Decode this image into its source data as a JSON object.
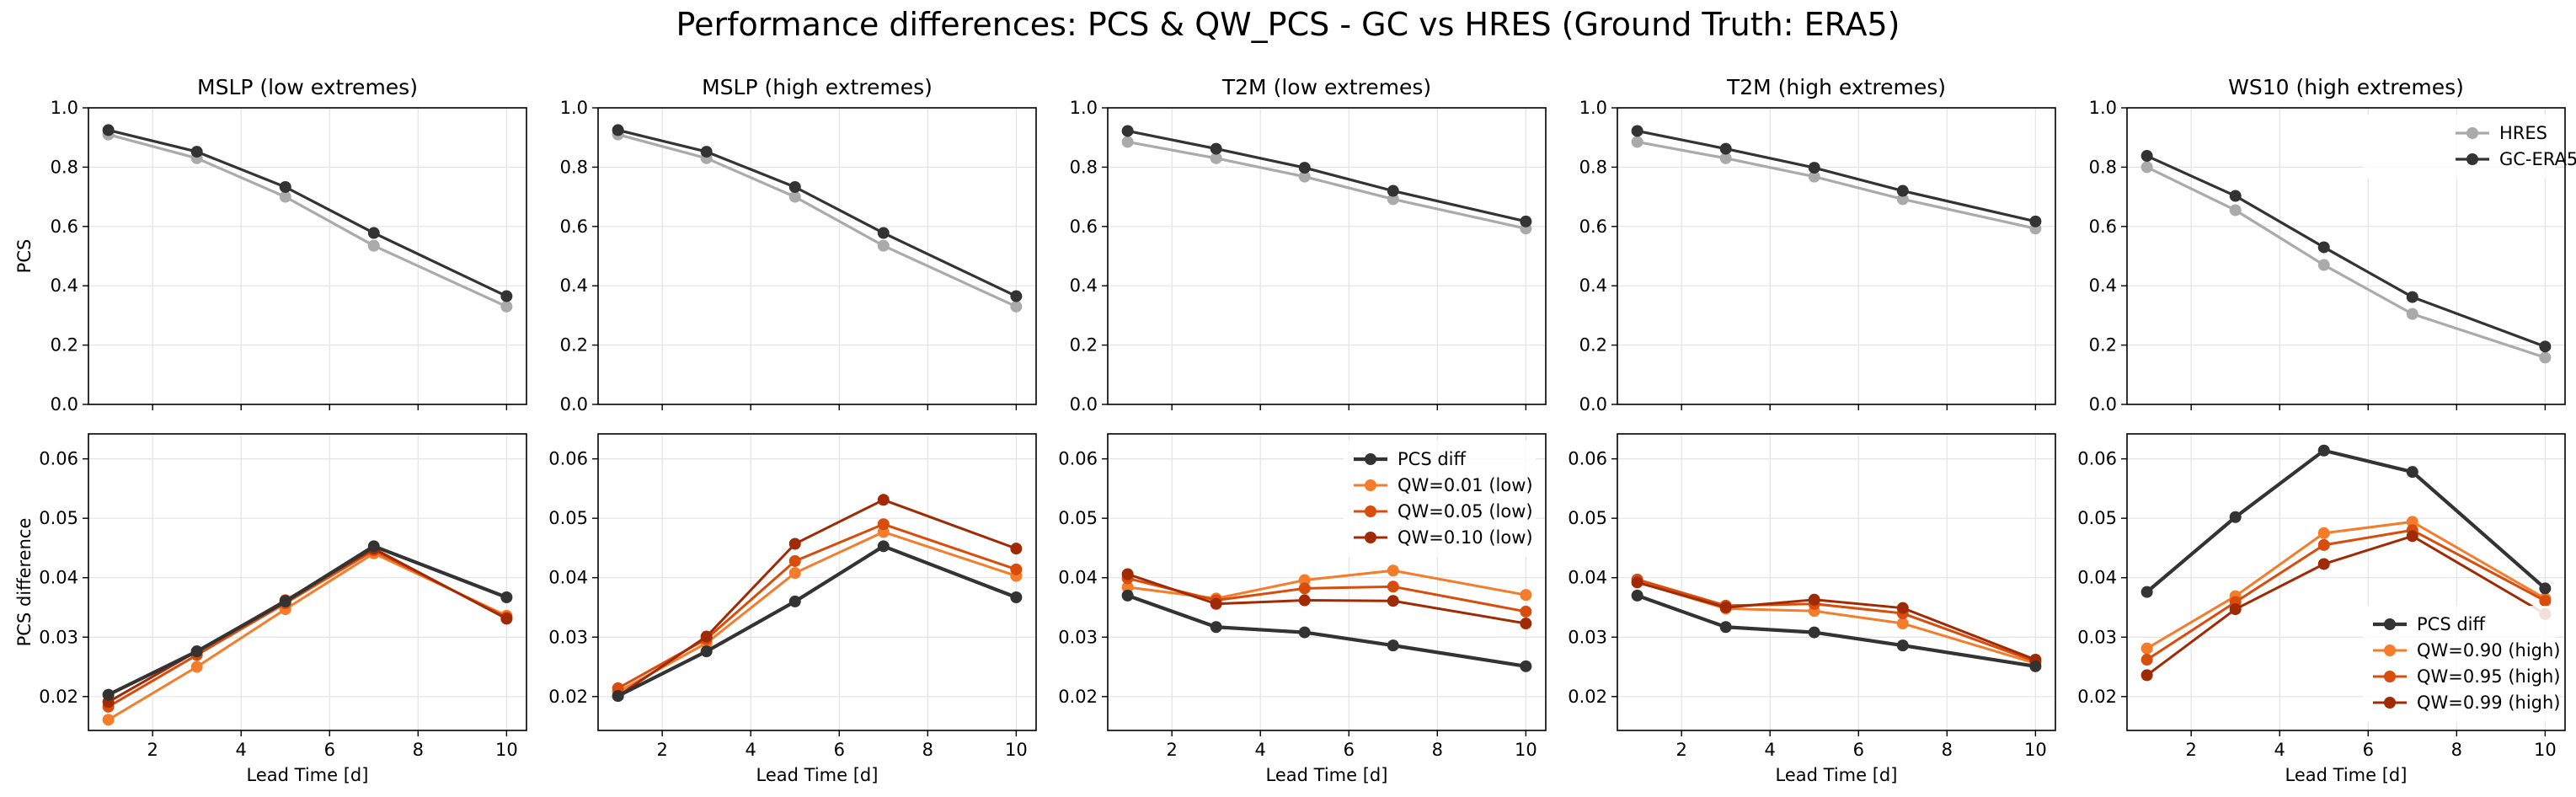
{
  "suptitle": "Performance differences: PCS & QW_PCS - GC vs HRES (Ground Truth: ERA5)",
  "colors": {
    "HRES": "#aaaaaa",
    "GC-ERA5": "#333333",
    "PCS diff": "#333333",
    "qw_low": [
      "#f47c2a",
      "#d84c0c",
      "#a02a04"
    ],
    "qw_high": [
      "#f47c2a",
      "#d84c0c",
      "#a02a04"
    ],
    "grid": "#e3e3e3"
  },
  "chart_data": [
    {
      "type": "line",
      "title": "MSLP (low extremes)",
      "ylabel": "PCS",
      "xlabel": "",
      "x": [
        1,
        3,
        5,
        7,
        10
      ],
      "xlim": [
        0.55,
        10.45
      ],
      "ylim": [
        0,
        1.0
      ],
      "xticks": [
        2,
        4,
        6,
        8,
        10
      ],
      "yticks": [
        0.0,
        0.2,
        0.4,
        0.6,
        0.8,
        1.0
      ],
      "ytick_labels": [
        "0.0",
        "0.2",
        "0.4",
        "0.6",
        "0.8",
        "1.0"
      ],
      "show_xtick_labels": false,
      "grid": true,
      "series": [
        {
          "name": "HRES",
          "values": [
            0.91,
            0.83,
            0.7,
            0.535,
            0.33
          ]
        },
        {
          "name": "GC-ERA5",
          "values": [
            0.925,
            0.852,
            0.733,
            0.578,
            0.365
          ]
        }
      ]
    },
    {
      "type": "line",
      "title": "MSLP (high extremes)",
      "ylabel": "",
      "xlabel": "",
      "x": [
        1,
        3,
        5,
        7,
        10
      ],
      "xlim": [
        0.55,
        10.45
      ],
      "ylim": [
        0,
        1.0
      ],
      "xticks": [
        2,
        4,
        6,
        8,
        10
      ],
      "yticks": [
        0.0,
        0.2,
        0.4,
        0.6,
        0.8,
        1.0
      ],
      "ytick_labels": [
        "0.0",
        "0.2",
        "0.4",
        "0.6",
        "0.8",
        "1.0"
      ],
      "show_xtick_labels": false,
      "grid": true,
      "series": [
        {
          "name": "HRES",
          "values": [
            0.91,
            0.83,
            0.7,
            0.535,
            0.33
          ]
        },
        {
          "name": "GC-ERA5",
          "values": [
            0.925,
            0.852,
            0.733,
            0.578,
            0.365
          ]
        }
      ]
    },
    {
      "type": "line",
      "title": "T2M (low extremes)",
      "ylabel": "",
      "xlabel": "",
      "x": [
        1,
        3,
        5,
        7,
        10
      ],
      "xlim": [
        0.55,
        10.45
      ],
      "ylim": [
        0,
        1.0
      ],
      "xticks": [
        2,
        4,
        6,
        8,
        10
      ],
      "yticks": [
        0.0,
        0.2,
        0.4,
        0.6,
        0.8,
        1.0
      ],
      "ytick_labels": [
        "0.0",
        "0.2",
        "0.4",
        "0.6",
        "0.8",
        "1.0"
      ],
      "show_xtick_labels": false,
      "grid": true,
      "series": [
        {
          "name": "HRES",
          "values": [
            0.885,
            0.83,
            0.768,
            0.692,
            0.593
          ]
        },
        {
          "name": "GC-ERA5",
          "values": [
            0.922,
            0.862,
            0.798,
            0.72,
            0.617
          ]
        }
      ]
    },
    {
      "type": "line",
      "title": "T2M (high extremes)",
      "ylabel": "",
      "xlabel": "",
      "x": [
        1,
        3,
        5,
        7,
        10
      ],
      "xlim": [
        0.55,
        10.45
      ],
      "ylim": [
        0,
        1.0
      ],
      "xticks": [
        2,
        4,
        6,
        8,
        10
      ],
      "yticks": [
        0.0,
        0.2,
        0.4,
        0.6,
        0.8,
        1.0
      ],
      "ytick_labels": [
        "0.0",
        "0.2",
        "0.4",
        "0.6",
        "0.8",
        "1.0"
      ],
      "show_xtick_labels": false,
      "grid": true,
      "series": [
        {
          "name": "HRES",
          "values": [
            0.885,
            0.83,
            0.768,
            0.692,
            0.593
          ]
        },
        {
          "name": "GC-ERA5",
          "values": [
            0.922,
            0.862,
            0.798,
            0.72,
            0.617
          ]
        }
      ]
    },
    {
      "type": "line",
      "title": "WS10 (high extremes)",
      "ylabel": "",
      "xlabel": "",
      "x": [
        1,
        3,
        5,
        7,
        10
      ],
      "xlim": [
        0.55,
        10.45
      ],
      "ylim": [
        0,
        1.0
      ],
      "xticks": [
        2,
        4,
        6,
        8,
        10
      ],
      "yticks": [
        0.0,
        0.2,
        0.4,
        0.6,
        0.8,
        1.0
      ],
      "ytick_labels": [
        "0.0",
        "0.2",
        "0.4",
        "0.6",
        "0.8",
        "1.0"
      ],
      "show_xtick_labels": false,
      "grid": true,
      "legend": "upper-right",
      "series": [
        {
          "name": "HRES",
          "values": [
            0.8,
            0.655,
            0.47,
            0.305,
            0.158
          ]
        },
        {
          "name": "GC-ERA5",
          "values": [
            0.838,
            0.703,
            0.53,
            0.362,
            0.195
          ]
        }
      ]
    },
    {
      "type": "line",
      "title": "",
      "ylabel": "PCS difference",
      "xlabel": "Lead Time [d]",
      "x": [
        1,
        3,
        5,
        7,
        10
      ],
      "xlim": [
        0.55,
        10.45
      ],
      "ylim": [
        0.0143,
        0.0642
      ],
      "xticks": [
        2,
        4,
        6,
        8,
        10
      ],
      "yticks": [
        0.02,
        0.03,
        0.04,
        0.05,
        0.06
      ],
      "ytick_labels": [
        "0.02",
        "0.03",
        "0.04",
        "0.05",
        "0.06"
      ],
      "show_xtick_labels": true,
      "grid": true,
      "series": [
        {
          "name": "QW=0.01 (low)",
          "values": [
            0.0161,
            0.025,
            0.0347,
            0.0441,
            0.0336
          ]
        },
        {
          "name": "QW=0.05 (low)",
          "values": [
            0.0183,
            0.027,
            0.0357,
            0.0446,
            0.0333
          ]
        },
        {
          "name": "QW=0.10 (low)",
          "values": [
            0.0191,
            0.0276,
            0.0362,
            0.0449,
            0.0331
          ]
        },
        {
          "name": "PCS diff",
          "values": [
            0.0203,
            0.0276,
            0.036,
            0.0453,
            0.0367
          ]
        }
      ]
    },
    {
      "type": "line",
      "title": "",
      "ylabel": "",
      "xlabel": "Lead Time [d]",
      "x": [
        1,
        3,
        5,
        7,
        10
      ],
      "xlim": [
        0.55,
        10.45
      ],
      "ylim": [
        0.0143,
        0.0642
      ],
      "xticks": [
        2,
        4,
        6,
        8,
        10
      ],
      "yticks": [
        0.02,
        0.03,
        0.04,
        0.05,
        0.06
      ],
      "ytick_labels": [
        "0.02",
        "0.03",
        "0.04",
        "0.05",
        "0.06"
      ],
      "show_xtick_labels": true,
      "grid": true,
      "series": [
        {
          "name": "QW=0.01 (low)",
          "values": [
            0.0208,
            0.029,
            0.0408,
            0.0477,
            0.0403
          ]
        },
        {
          "name": "QW=0.05 (low)",
          "values": [
            0.0214,
            0.0297,
            0.0428,
            0.049,
            0.0414
          ]
        },
        {
          "name": "QW=0.10 (low)",
          "values": [
            0.0201,
            0.0301,
            0.0457,
            0.0531,
            0.0449
          ]
        },
        {
          "name": "PCS diff",
          "values": [
            0.0201,
            0.0276,
            0.036,
            0.0453,
            0.0367
          ]
        }
      ]
    },
    {
      "type": "line",
      "title": "",
      "ylabel": "",
      "xlabel": "Lead Time [d]",
      "x": [
        1,
        3,
        5,
        7,
        10
      ],
      "xlim": [
        0.55,
        10.45
      ],
      "ylim": [
        0.0143,
        0.0642
      ],
      "xticks": [
        2,
        4,
        6,
        8,
        10
      ],
      "yticks": [
        0.02,
        0.03,
        0.04,
        0.05,
        0.06
      ],
      "ytick_labels": [
        "0.02",
        "0.03",
        "0.04",
        "0.05",
        "0.06"
      ],
      "show_xtick_labels": true,
      "grid": true,
      "legend": "upper-right",
      "legend_order": [
        "PCS diff",
        "QW=0.01 (low)",
        "QW=0.05 (low)",
        "QW=0.10 (low)"
      ],
      "series": [
        {
          "name": "QW=0.01 (low)",
          "values": [
            0.0384,
            0.0365,
            0.0396,
            0.0412,
            0.0371
          ]
        },
        {
          "name": "QW=0.05 (low)",
          "values": [
            0.0399,
            0.0362,
            0.0382,
            0.0385,
            0.0343
          ]
        },
        {
          "name": "QW=0.10 (low)",
          "values": [
            0.0406,
            0.0356,
            0.0362,
            0.0361,
            0.0323
          ]
        },
        {
          "name": "PCS diff",
          "values": [
            0.037,
            0.0317,
            0.0308,
            0.0286,
            0.0251
          ]
        }
      ]
    },
    {
      "type": "line",
      "title": "",
      "ylabel": "",
      "xlabel": "Lead Time [d]",
      "x": [
        1,
        3,
        5,
        7,
        10
      ],
      "xlim": [
        0.55,
        10.45
      ],
      "ylim": [
        0.0143,
        0.0642
      ],
      "xticks": [
        2,
        4,
        6,
        8,
        10
      ],
      "yticks": [
        0.02,
        0.03,
        0.04,
        0.05,
        0.06
      ],
      "ytick_labels": [
        "0.02",
        "0.03",
        "0.04",
        "0.05",
        "0.06"
      ],
      "show_xtick_labels": true,
      "grid": true,
      "series": [
        {
          "name": "QW=0.90 (high)",
          "values": [
            0.0393,
            0.0348,
            0.0344,
            0.0323,
            0.0256
          ]
        },
        {
          "name": "QW=0.95 (high)",
          "values": [
            0.0397,
            0.0353,
            0.0356,
            0.034,
            0.0259
          ]
        },
        {
          "name": "QW=0.99 (high)",
          "values": [
            0.0392,
            0.035,
            0.0363,
            0.0349,
            0.0262
          ]
        },
        {
          "name": "PCS diff",
          "values": [
            0.037,
            0.0317,
            0.0308,
            0.0286,
            0.0251
          ]
        }
      ]
    },
    {
      "type": "line",
      "title": "",
      "ylabel": "",
      "xlabel": "Lead Time [d]",
      "x": [
        1,
        3,
        5,
        7,
        10
      ],
      "xlim": [
        0.55,
        10.45
      ],
      "ylim": [
        0.0143,
        0.0642
      ],
      "xticks": [
        2,
        4,
        6,
        8,
        10
      ],
      "yticks": [
        0.02,
        0.03,
        0.04,
        0.05,
        0.06
      ],
      "ytick_labels": [
        "0.02",
        "0.03",
        "0.04",
        "0.05",
        "0.06"
      ],
      "show_xtick_labels": true,
      "grid": true,
      "legend": "lower-right",
      "legend_order": [
        "PCS diff",
        "QW=0.90 (high)",
        "QW=0.95 (high)",
        "QW=0.99 (high)"
      ],
      "series": [
        {
          "name": "QW=0.90 (high)",
          "values": [
            0.0281,
            0.0369,
            0.0475,
            0.0494,
            0.0365
          ]
        },
        {
          "name": "QW=0.95 (high)",
          "values": [
            0.0262,
            0.0359,
            0.0455,
            0.048,
            0.0361
          ]
        },
        {
          "name": "QW=0.99 (high)",
          "values": [
            0.0236,
            0.0347,
            0.0423,
            0.047,
            0.0339
          ]
        },
        {
          "name": "PCS diff",
          "values": [
            0.0376,
            0.0502,
            0.0614,
            0.0578,
            0.0382
          ]
        }
      ]
    }
  ]
}
